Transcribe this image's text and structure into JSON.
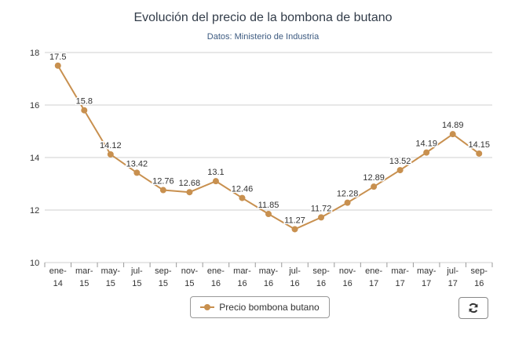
{
  "title": "Evolución del precio de la bombona de butano",
  "subtitle": "Datos: Ministerio de Industria",
  "legend_label": "Precio bombona butano",
  "colors": {
    "series": "#c8904f",
    "grid": "#cfcfcf",
    "axis_text": "#333333"
  },
  "refresh_icon": "refresh-icon",
  "chart_data": {
    "type": "line",
    "x": [
      "ene-14",
      "mar-15",
      "may-15",
      "jul-15",
      "sep-15",
      "nov-15",
      "ene-16",
      "mar-16",
      "may-16",
      "jul-16",
      "sep-16",
      "nov-16",
      "ene-17",
      "mar-17",
      "may-17",
      "jul-17",
      "sep-16"
    ],
    "x_label_lines": [
      [
        "ene-",
        "14"
      ],
      [
        "mar-",
        "15"
      ],
      [
        "may-",
        "15"
      ],
      [
        "jul-",
        "15"
      ],
      [
        "sep-",
        "15"
      ],
      [
        "nov-",
        "15"
      ],
      [
        "ene-",
        "16"
      ],
      [
        "mar-",
        "16"
      ],
      [
        "may-",
        "16"
      ],
      [
        "jul-",
        "16"
      ],
      [
        "sep-",
        "16"
      ],
      [
        "nov-",
        "16"
      ],
      [
        "ene-",
        "17"
      ],
      [
        "mar-",
        "17"
      ],
      [
        "may-",
        "17"
      ],
      [
        "jul-",
        "17"
      ],
      [
        "sep-",
        "16"
      ]
    ],
    "series": [
      {
        "name": "Precio bombona butano",
        "values": [
          17.5,
          15.8,
          14.12,
          13.42,
          12.76,
          12.68,
          13.1,
          12.46,
          11.85,
          11.27,
          11.72,
          12.28,
          12.89,
          13.52,
          14.19,
          14.89,
          14.15
        ],
        "labels": [
          "17.5",
          "15.8",
          "14.12",
          "13.42",
          "12.76",
          "12.68",
          "13.1",
          "12.46",
          "11.85",
          "11.27",
          "11.72",
          "12.28",
          "12.89",
          "13.52",
          "14.19",
          "14.89",
          "14.15"
        ]
      }
    ],
    "yticks": [
      10,
      12,
      14,
      16,
      18
    ],
    "ylim": [
      10,
      18
    ],
    "grid": true,
    "legend_position": "bottom-center"
  }
}
